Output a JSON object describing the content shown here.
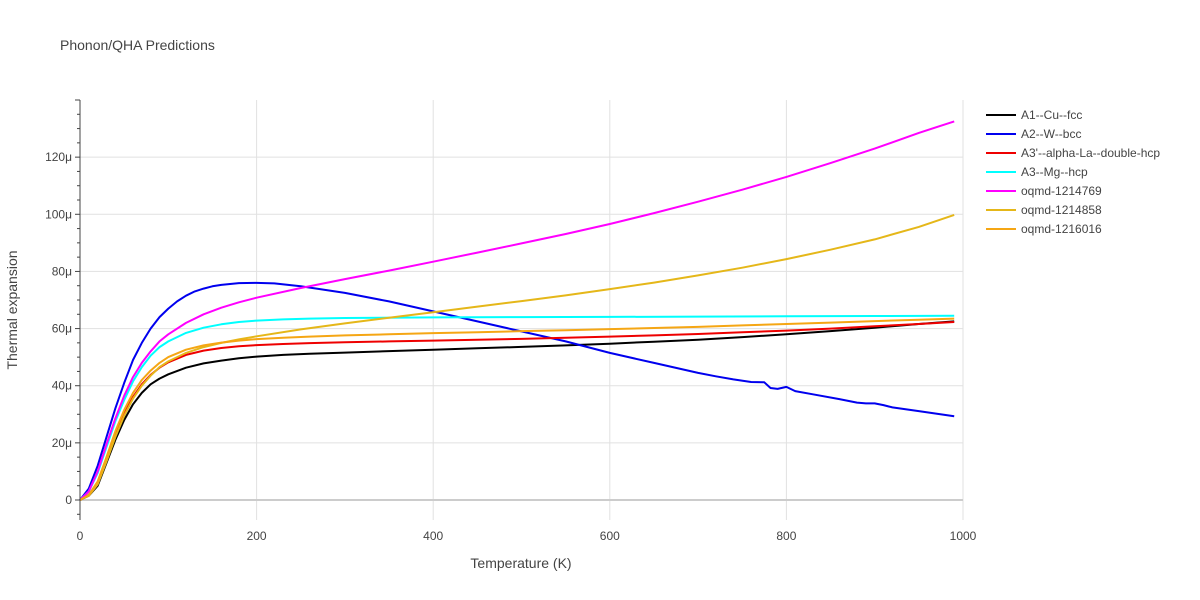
{
  "chart_data": {
    "type": "line",
    "title": "Phonon/QHA Predictions",
    "xlabel": "Temperature (K)",
    "ylabel": "Thermal expansion",
    "xlim": [
      0,
      1000
    ],
    "ylim": [
      -7,
      140
    ],
    "x_ticks": [
      0,
      200,
      400,
      600,
      800,
      1000
    ],
    "y_ticks": [
      0,
      20,
      40,
      60,
      80,
      100,
      120
    ],
    "y_tick_labels": [
      "0",
      "20μ",
      "40μ",
      "60μ",
      "80μ",
      "100μ",
      "120μ"
    ],
    "grid": true,
    "legend_position": "right",
    "series": [
      {
        "name": "A1--Cu--fcc",
        "color": "#000000",
        "x": [
          0,
          10,
          20,
          30,
          40,
          50,
          60,
          70,
          80,
          90,
          100,
          120,
          140,
          160,
          180,
          200,
          230,
          260,
          300,
          350,
          400,
          450,
          500,
          550,
          600,
          650,
          700,
          750,
          800,
          850,
          900,
          950,
          990
        ],
        "y": [
          0,
          1.5,
          5,
          13,
          21,
          28,
          33.5,
          37.5,
          40.5,
          42.5,
          44,
          46.3,
          47.8,
          48.8,
          49.6,
          50.2,
          50.8,
          51.2,
          51.6,
          52.1,
          52.6,
          53.1,
          53.6,
          54.1,
          54.7,
          55.4,
          56.1,
          57.0,
          58.0,
          59.1,
          60.3,
          61.6,
          62.5
        ]
      },
      {
        "name": "A2--W--bcc",
        "color": "#0000ee",
        "x": [
          0,
          10,
          20,
          30,
          40,
          50,
          60,
          70,
          80,
          90,
          100,
          110,
          120,
          130,
          140,
          150,
          160,
          180,
          200,
          220,
          250,
          300,
          350,
          400,
          450,
          500,
          550,
          600,
          650,
          700,
          720,
          740,
          760,
          775,
          782,
          790,
          800,
          810,
          830,
          860,
          880,
          890,
          900,
          910,
          920,
          950,
          990
        ],
        "y": [
          0,
          4,
          12,
          22,
          32,
          41,
          49,
          55,
          60,
          64,
          67,
          69.5,
          71.5,
          73,
          74,
          74.8,
          75.3,
          75.9,
          76,
          75.8,
          74.8,
          72.5,
          69.5,
          66,
          62.5,
          59,
          55.5,
          51.5,
          48,
          44.5,
          43.3,
          42.2,
          41.3,
          41.2,
          39.2,
          38.9,
          39.6,
          38.1,
          37,
          35.3,
          34.1,
          33.8,
          33.8,
          33.2,
          32.4,
          31.1,
          29.3
        ]
      },
      {
        "name": "A3'--alpha-La--double-hcp",
        "color": "#ee0000",
        "x": [
          0,
          10,
          20,
          30,
          40,
          50,
          60,
          70,
          80,
          90,
          100,
          120,
          140,
          160,
          180,
          200,
          230,
          260,
          300,
          350,
          400,
          450,
          500,
          550,
          600,
          650,
          700,
          750,
          800,
          850,
          900,
          950,
          990
        ],
        "y": [
          0,
          1.8,
          6,
          14.5,
          23,
          30.5,
          36,
          40.5,
          43.8,
          46.3,
          48.2,
          50.8,
          52.3,
          53.2,
          53.8,
          54.2,
          54.6,
          54.9,
          55.2,
          55.5,
          55.8,
          56.1,
          56.4,
          56.8,
          57.2,
          57.6,
          58.1,
          58.7,
          59.3,
          60.0,
          60.8,
          61.6,
          62.3
        ]
      },
      {
        "name": "A3--Mg--hcp",
        "color": "#00ffff",
        "x": [
          0,
          10,
          20,
          30,
          40,
          50,
          60,
          70,
          80,
          90,
          100,
          120,
          140,
          160,
          180,
          200,
          230,
          260,
          300,
          400,
          500,
          600,
          700,
          800,
          900,
          990
        ],
        "y": [
          0,
          3,
          9.5,
          18.5,
          27.5,
          35,
          41.5,
          46.5,
          50.5,
          53.5,
          55.5,
          58.5,
          60.3,
          61.5,
          62.3,
          62.8,
          63.2,
          63.5,
          63.7,
          63.9,
          64.0,
          64.1,
          64.2,
          64.3,
          64.4,
          64.5
        ]
      },
      {
        "name": "oqmd-1214769",
        "color": "#ff00ff",
        "x": [
          0,
          10,
          20,
          30,
          40,
          50,
          60,
          70,
          80,
          90,
          100,
          120,
          140,
          160,
          180,
          200,
          250,
          300,
          350,
          400,
          450,
          500,
          550,
          600,
          650,
          700,
          750,
          800,
          850,
          900,
          950,
          990
        ],
        "y": [
          0,
          3,
          10,
          19.5,
          28.5,
          36.5,
          43,
          48,
          52,
          55.5,
          58,
          62,
          65,
          67.3,
          69.2,
          70.8,
          74.2,
          77.3,
          80.3,
          83.4,
          86.6,
          89.8,
          93.1,
          96.6,
          100.4,
          104.4,
          108.6,
          113.1,
          117.9,
          123,
          128.5,
          132.5
        ]
      },
      {
        "name": "oqmd-1214858",
        "color": "#e5b719",
        "x": [
          0,
          10,
          20,
          30,
          40,
          50,
          60,
          70,
          80,
          90,
          100,
          120,
          140,
          160,
          180,
          200,
          250,
          300,
          350,
          400,
          450,
          500,
          550,
          600,
          650,
          700,
          750,
          800,
          850,
          900,
          950,
          990
        ],
        "y": [
          0,
          1.5,
          5.5,
          13.5,
          22,
          29.5,
          35.5,
          40,
          43.5,
          46.5,
          48.5,
          51.5,
          53.5,
          55,
          56.2,
          57.3,
          59.7,
          61.8,
          63.8,
          65.7,
          67.7,
          69.6,
          71.6,
          73.8,
          76.1,
          78.6,
          81.3,
          84.3,
          87.6,
          91.2,
          95.6,
          99.8
        ]
      },
      {
        "name": "oqmd-1216016",
        "color": "#f5a614",
        "x": [
          0,
          10,
          20,
          30,
          40,
          50,
          60,
          70,
          80,
          90,
          100,
          120,
          140,
          160,
          180,
          200,
          230,
          260,
          300,
          350,
          400,
          450,
          500,
          550,
          600,
          650,
          700,
          750,
          800,
          850,
          900,
          950,
          990
        ],
        "y": [
          0,
          1.8,
          6.5,
          15,
          24,
          31.5,
          37.5,
          42,
          45.3,
          48,
          50,
          52.6,
          54.1,
          55.1,
          55.8,
          56.3,
          56.8,
          57.2,
          57.6,
          58,
          58.4,
          58.7,
          59.1,
          59.4,
          59.8,
          60.2,
          60.6,
          61.1,
          61.6,
          62.1,
          62.6,
          63.1,
          63.5
        ]
      }
    ]
  }
}
